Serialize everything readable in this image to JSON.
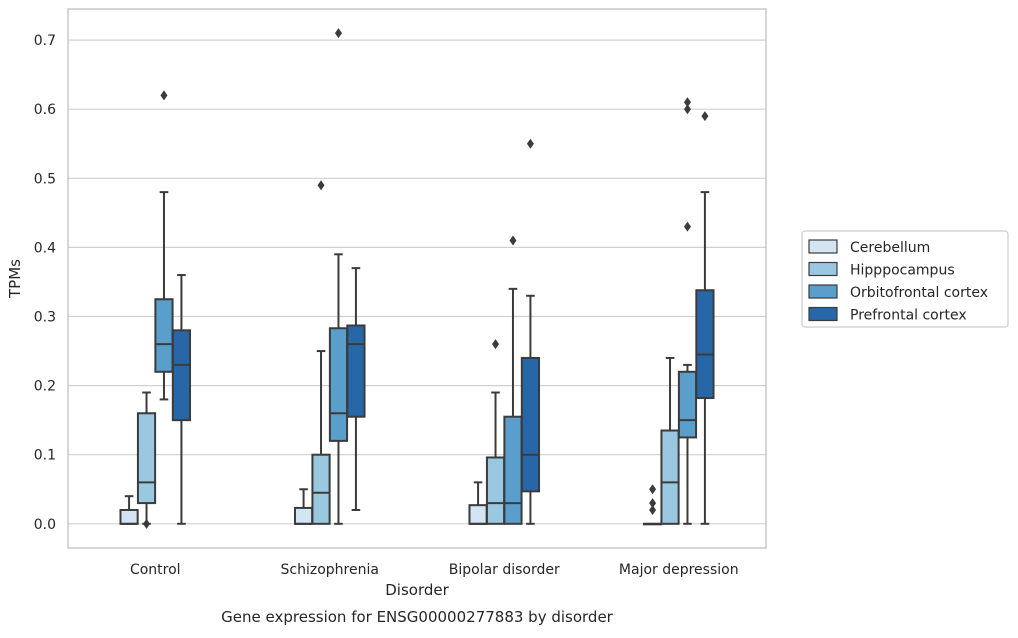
{
  "chart_data": {
    "type": "boxplot",
    "title": "",
    "caption": "Gene expression for ENSG00000277883 by disorder",
    "xlabel": "Disorder",
    "ylabel": "TPMs",
    "ylim": [
      -0.035,
      0.745
    ],
    "yticks": [
      0.0,
      0.1,
      0.2,
      0.3,
      0.4,
      0.5,
      0.6,
      0.7
    ],
    "ytick_labels": [
      "0.0",
      "0.1",
      "0.2",
      "0.3",
      "0.4",
      "0.5",
      "0.6",
      "0.7"
    ],
    "grid": "horizontal",
    "legend_position": "right",
    "categories": [
      "Control",
      "Schizophrenia",
      "Bipolar disorder",
      "Major depression"
    ],
    "series": [
      {
        "name": "Cerebellum",
        "color": "#d3e4f3",
        "boxes": [
          {
            "whisker_low": 0.0,
            "q1": 0.0,
            "median": 0.0,
            "q3": 0.02,
            "whisker_high": 0.04,
            "outliers": []
          },
          {
            "whisker_low": 0.0,
            "q1": 0.0,
            "median": 0.0,
            "q3": 0.023,
            "whisker_high": 0.05,
            "outliers": []
          },
          {
            "whisker_low": 0.0,
            "q1": 0.0,
            "median": 0.0,
            "q3": 0.027,
            "whisker_high": 0.06,
            "outliers": []
          },
          {
            "whisker_low": 0.0,
            "q1": 0.0,
            "median": 0.0,
            "q3": 0.0,
            "whisker_high": 0.0,
            "outliers": [
              0.02,
              0.03,
              0.05
            ]
          }
        ]
      },
      {
        "name": "Hipppocampus",
        "color": "#9ac8e0",
        "boxes": [
          {
            "whisker_low": 0.0,
            "q1": 0.03,
            "median": 0.06,
            "q3": 0.16,
            "whisker_high": 0.19,
            "outliers": [
              0.0
            ]
          },
          {
            "whisker_low": 0.0,
            "q1": 0.0,
            "median": 0.045,
            "q3": 0.1,
            "whisker_high": 0.25,
            "outliers": [
              0.49
            ]
          },
          {
            "whisker_low": 0.0,
            "q1": 0.0,
            "median": 0.03,
            "q3": 0.096,
            "whisker_high": 0.19,
            "outliers": [
              0.26
            ]
          },
          {
            "whisker_low": 0.0,
            "q1": 0.0,
            "median": 0.06,
            "q3": 0.135,
            "whisker_high": 0.24,
            "outliers": []
          }
        ]
      },
      {
        "name": "Orbitofrontal cortex",
        "color": "#5a9ecb",
        "boxes": [
          {
            "whisker_low": 0.18,
            "q1": 0.22,
            "median": 0.26,
            "q3": 0.325,
            "whisker_high": 0.48,
            "outliers": [
              0.62
            ]
          },
          {
            "whisker_low": 0.0,
            "q1": 0.12,
            "median": 0.16,
            "q3": 0.283,
            "whisker_high": 0.39,
            "outliers": [
              0.71
            ]
          },
          {
            "whisker_low": 0.0,
            "q1": 0.0,
            "median": 0.03,
            "q3": 0.155,
            "whisker_high": 0.34,
            "outliers": [
              0.41
            ]
          },
          {
            "whisker_low": 0.0,
            "q1": 0.125,
            "median": 0.15,
            "q3": 0.22,
            "whisker_high": 0.23,
            "outliers": [
              0.43,
              0.6,
              0.61
            ]
          }
        ]
      },
      {
        "name": "Prefrontal cortex",
        "color": "#2767a8",
        "boxes": [
          {
            "whisker_low": 0.0,
            "q1": 0.15,
            "median": 0.23,
            "q3": 0.28,
            "whisker_high": 0.36,
            "outliers": []
          },
          {
            "whisker_low": 0.02,
            "q1": 0.155,
            "median": 0.26,
            "q3": 0.287,
            "whisker_high": 0.37,
            "outliers": []
          },
          {
            "whisker_low": 0.0,
            "q1": 0.047,
            "median": 0.1,
            "q3": 0.24,
            "whisker_high": 0.33,
            "outliers": [
              0.55
            ]
          },
          {
            "whisker_low": 0.0,
            "q1": 0.182,
            "median": 0.245,
            "q3": 0.338,
            "whisker_high": 0.48,
            "outliers": [
              0.59
            ]
          }
        ]
      }
    ],
    "box_edge_color": "#3b3b3b",
    "grid_color": "#d0d0d0",
    "frame_color": "#c8c8c8"
  }
}
